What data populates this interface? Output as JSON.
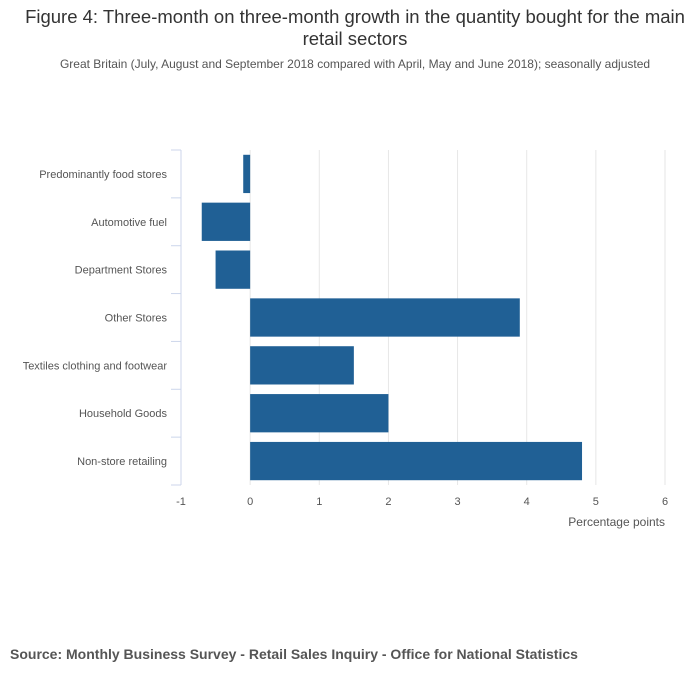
{
  "title": "Figure 4: Three-month on three-month growth in the quantity bought for the main retail sectors",
  "subtitle": "Great Britain (July, August and September 2018 compared with April, May and June 2018); seasonally adjusted",
  "source": "Source: Monthly Business Survey - Retail Sales Inquiry - Office for National Statistics",
  "colors": {
    "bar": "#206095",
    "grid": "#e6e6e6",
    "axis": "#ccd6eb"
  },
  "chart_data": {
    "type": "bar",
    "orientation": "horizontal",
    "categories": [
      "Predominantly food stores",
      "Automotive fuel",
      "Department Stores",
      "Other Stores",
      "Textiles clothing and footwear",
      "Household Goods",
      "Non-store retailing"
    ],
    "values": [
      -0.1,
      -0.7,
      -0.5,
      3.9,
      1.5,
      2.0,
      4.8
    ],
    "xlabel": "Percentage points",
    "xlim": [
      -1,
      6
    ],
    "xticks": [
      -1,
      0,
      1,
      2,
      3,
      4,
      5,
      6
    ],
    "grid": true,
    "legend": "none"
  }
}
